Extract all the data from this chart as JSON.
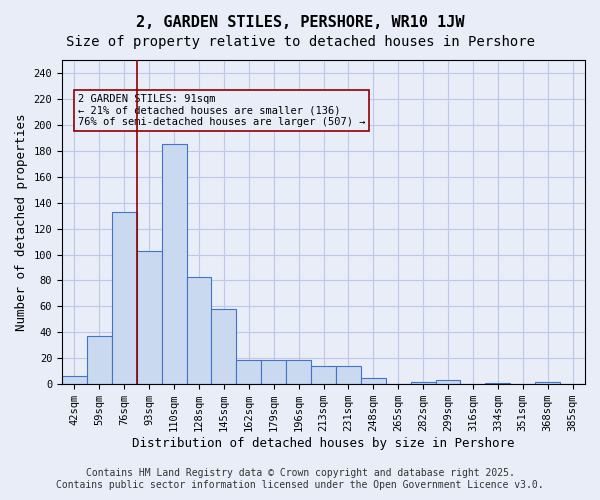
{
  "title": "2, GARDEN STILES, PERSHORE, WR10 1JW",
  "subtitle": "Size of property relative to detached houses in Pershore",
  "xlabel": "Distribution of detached houses by size in Pershore",
  "ylabel": "Number of detached properties",
  "categories": [
    "42sqm",
    "59sqm",
    "76sqm",
    "93sqm",
    "110sqm",
    "128sqm",
    "145sqm",
    "162sqm",
    "179sqm",
    "196sqm",
    "213sqm",
    "231sqm",
    "248sqm",
    "265sqm",
    "282sqm",
    "299sqm",
    "316sqm",
    "334sqm",
    "351sqm",
    "368sqm",
    "385sqm"
  ],
  "bar_values": [
    6,
    37,
    133,
    103,
    185,
    83,
    58,
    19,
    19,
    19,
    14,
    14,
    5,
    0,
    2,
    3,
    0,
    1,
    0,
    2,
    0
  ],
  "bar_color": "#c9d9f0",
  "bar_edge_color": "#4472c4",
  "bar_edge_width": 0.8,
  "grid_color": "#c0c8e8",
  "background_color": "#e8edf8",
  "red_line_x": 2.5,
  "annotation_text": "2 GARDEN STILES: 91sqm\n← 21% of detached houses are smaller (136)\n76% of semi-detached houses are larger (507) →",
  "ylim": [
    0,
    250
  ],
  "yticks": [
    0,
    20,
    40,
    60,
    80,
    100,
    120,
    140,
    160,
    180,
    200,
    220,
    240
  ],
  "footer_text": "Contains HM Land Registry data © Crown copyright and database right 2025.\nContains public sector information licensed under the Open Government Licence v3.0.",
  "title_fontsize": 11,
  "subtitle_fontsize": 10,
  "axis_label_fontsize": 9,
  "tick_fontsize": 7.5,
  "annotation_fontsize": 7.5,
  "footer_fontsize": 7
}
